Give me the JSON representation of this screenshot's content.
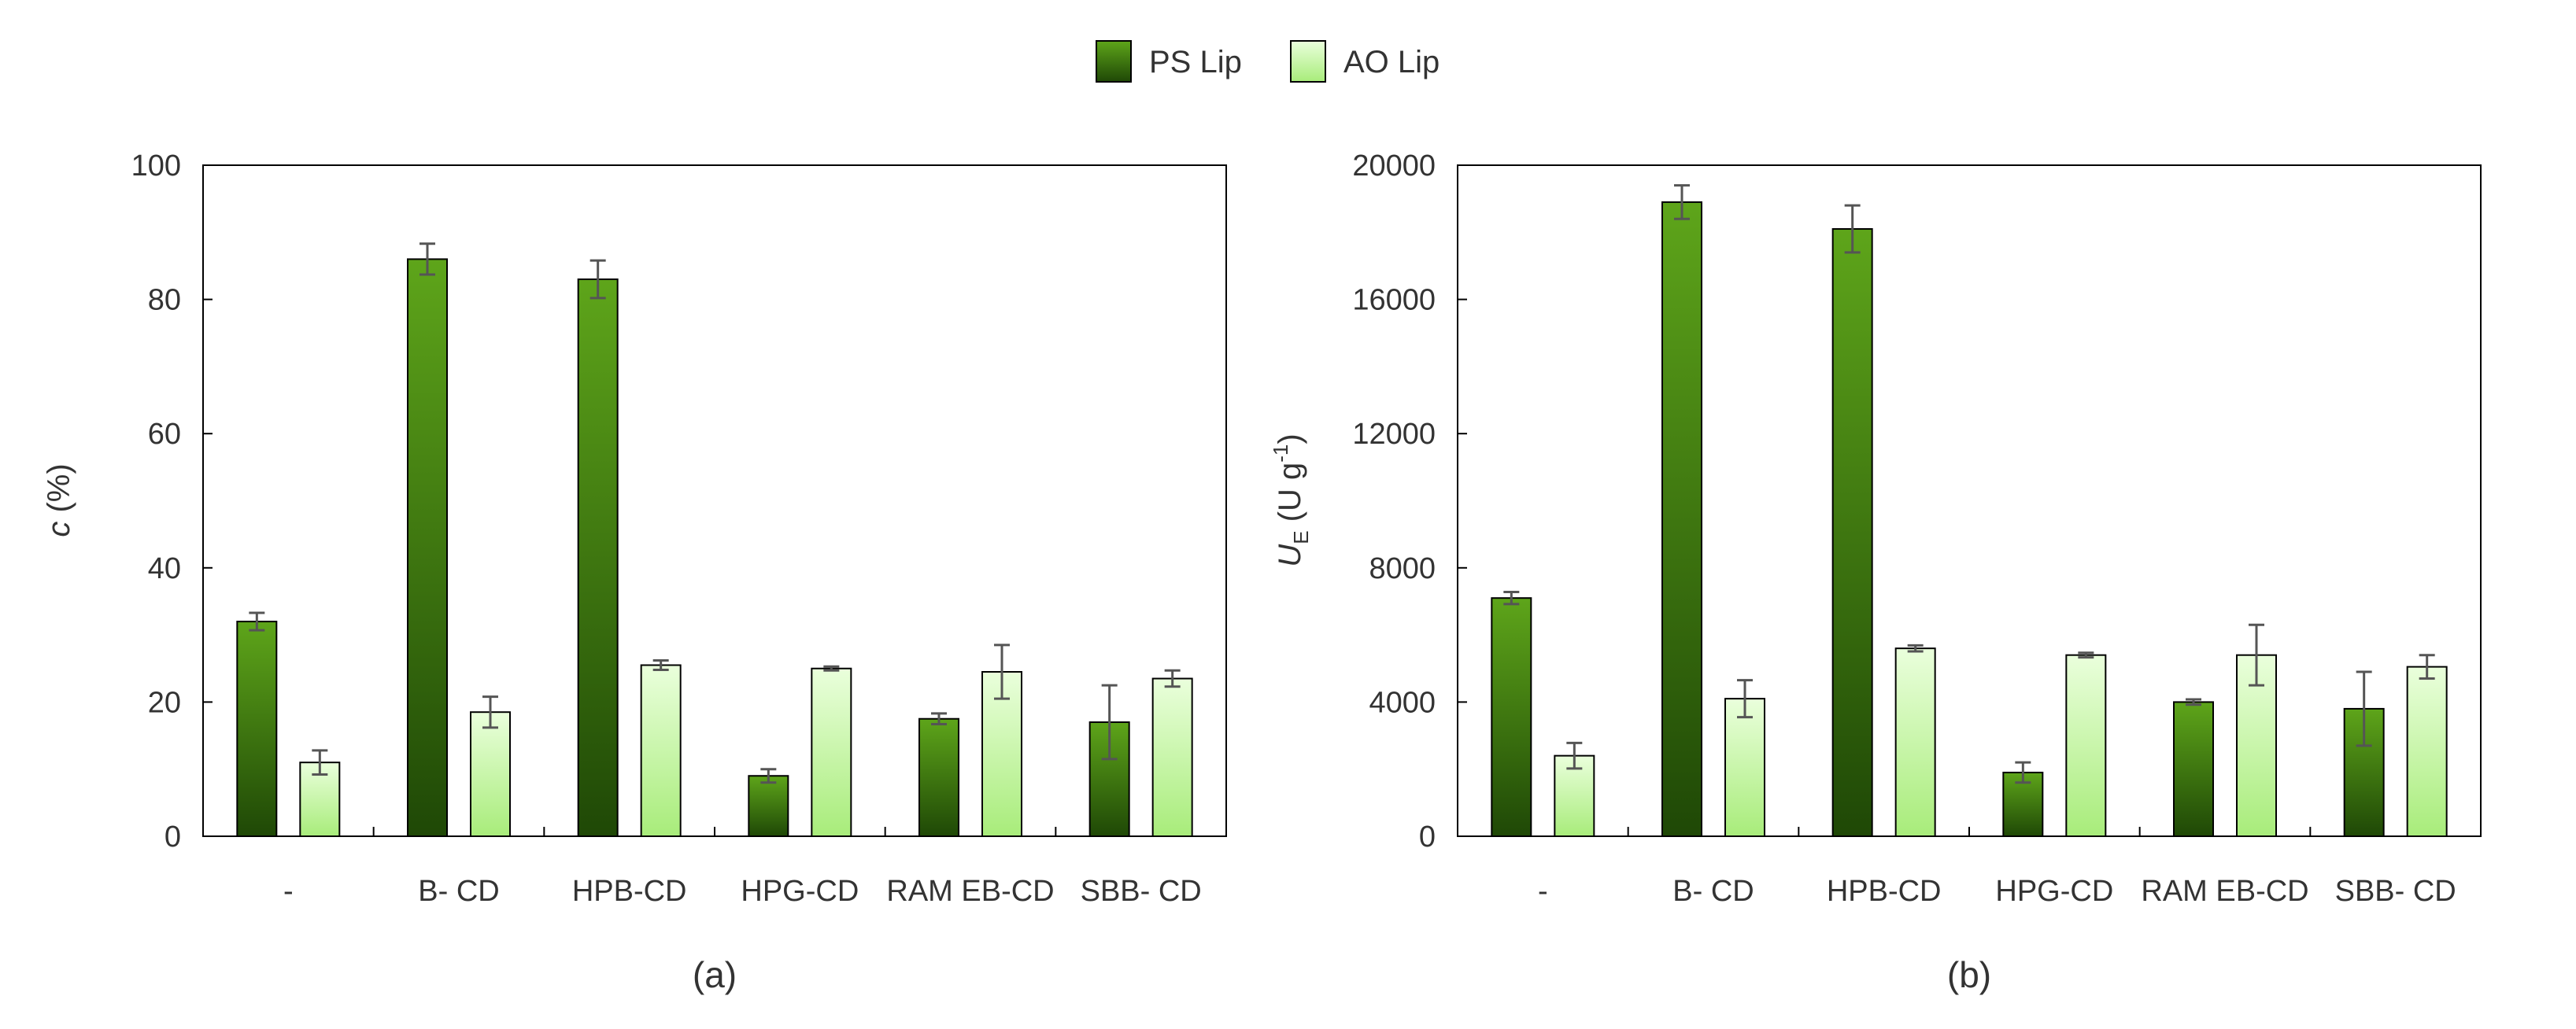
{
  "legend": [
    {
      "label": "PS Lip",
      "color": "#3f7a0c"
    },
    {
      "label": "AO Lip",
      "color": "#c8f5a8"
    }
  ],
  "colors": {
    "ps_top": "#5ea51a",
    "ps_bottom": "#1f4806",
    "ao_top": "#eaffdc",
    "ao_bottom": "#a8ec7a",
    "error_bar": "#555555",
    "frame": "#000000"
  },
  "chart_data": [
    {
      "type": "bar",
      "panel_label": "(a)",
      "categories": [
        "-",
        "B- CD",
        "HPB-CD",
        "HPG-CD",
        "RAM EB-CD",
        "SBB- CD"
      ],
      "ylabel": "c (%)",
      "ylabel_symbol": "c",
      "ylabel_rest": " (%)",
      "ylim": [
        0,
        100
      ],
      "yticks": [
        "0",
        "20",
        "40",
        "60",
        "80",
        "100"
      ],
      "grid": false,
      "legend_position": "top-center",
      "series": [
        {
          "name": "PS Lip",
          "values": [
            32,
            86,
            83,
            9,
            17.5,
            17
          ],
          "errors": [
            1.3,
            2.3,
            2.8,
            1.0,
            0.8,
            5.5
          ]
        },
        {
          "name": "AO Lip",
          "values": [
            11,
            18.5,
            25.5,
            25,
            24.5,
            23.5
          ],
          "errors": [
            1.8,
            2.3,
            0.7,
            0.3,
            4.0,
            1.2
          ]
        }
      ]
    },
    {
      "type": "bar",
      "panel_label": "(b)",
      "categories": [
        "-",
        "B- CD",
        "HPB-CD",
        "HPG-CD",
        "RAM EB-CD",
        "SBB- CD"
      ],
      "ylabel": "UE (U g-1)",
      "ylabel_symbol": "U",
      "ylabel_sub": "E",
      "ylabel_mid": " (U g",
      "ylabel_sup": "-1",
      "ylabel_end": ")",
      "ylim": [
        0,
        20000
      ],
      "yticks": [
        "0",
        "4000",
        "8000",
        "12000",
        "16000",
        "20000"
      ],
      "grid": false,
      "legend_position": "top-center",
      "series": [
        {
          "name": "PS Lip",
          "values": [
            7100,
            18900,
            18100,
            1900,
            4000,
            3800
          ],
          "errors": [
            180,
            500,
            700,
            300,
            80,
            1100
          ]
        },
        {
          "name": "AO Lip",
          "values": [
            2400,
            4100,
            5600,
            5400,
            5400,
            5050
          ],
          "errors": [
            380,
            550,
            90,
            70,
            900,
            350
          ]
        }
      ]
    }
  ]
}
